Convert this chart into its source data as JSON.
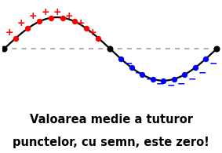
{
  "title_line1": "Valoarea medie a tuturor",
  "title_line2": "punctelor, cu semn, este zero!",
  "title_fontsize": 10.5,
  "bg_color": "#ffffff",
  "sine_color": "#000000",
  "sine_linewidth": 1.6,
  "dashed_color": "#999999",
  "dashed_linewidth": 1.1,
  "red_dot_color": "#ff0000",
  "blue_dot_color": "#0000ff",
  "black_dot_color": "#000000",
  "dot_size": 28,
  "plus_color": "#ff0000",
  "minus_color": "#0000ff",
  "sign_fontsize": 9,
  "n_positive_points": 8,
  "n_negative_points": 9,
  "xlim": [
    -0.05,
    6.38
  ],
  "ylim": [
    -1.45,
    1.45
  ],
  "figwidth": 2.83,
  "figheight": 1.95
}
